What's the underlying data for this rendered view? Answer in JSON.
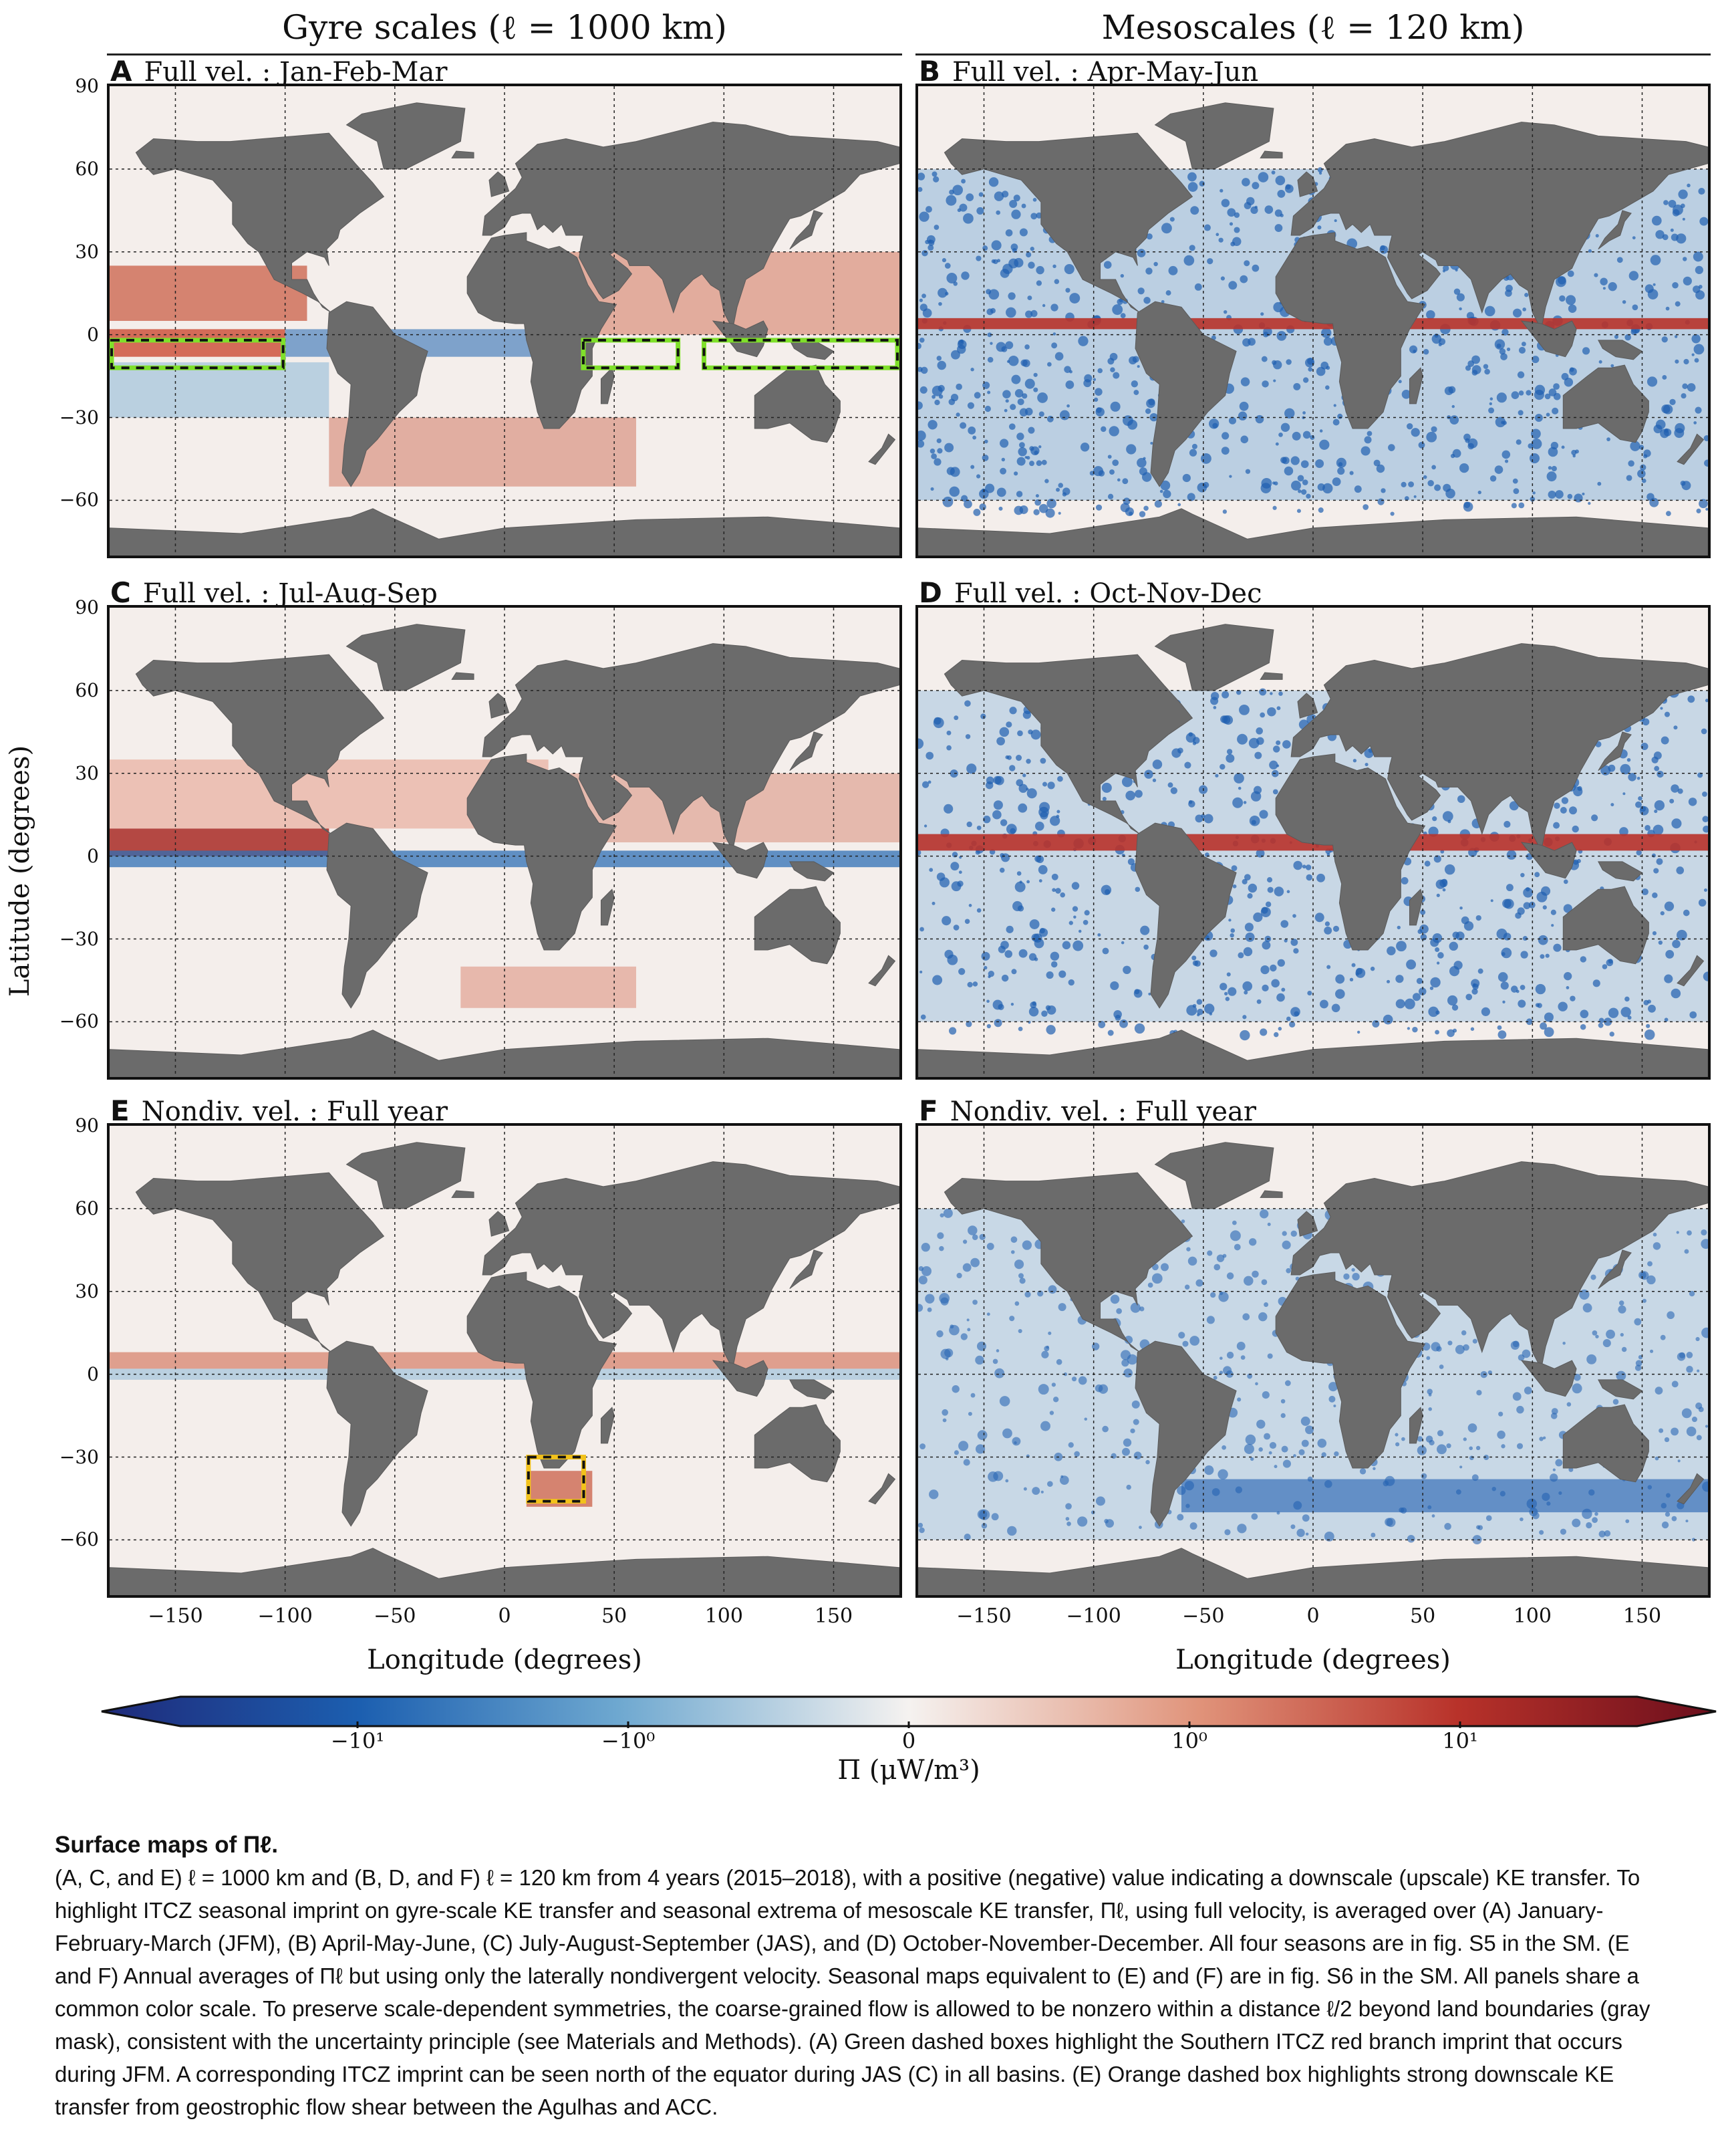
{
  "columns": {
    "left_title": "Gyre scales (ℓ = 1000 km)",
    "right_title": "Mesoscales (ℓ = 120 km)"
  },
  "panels": [
    {
      "letter": "A",
      "title": "Full vel. : Jan-Feb-Mar"
    },
    {
      "letter": "B",
      "title": "Full vel. : Apr-May-Jun"
    },
    {
      "letter": "C",
      "title": "Full vel. : Jul-Aug-Sep"
    },
    {
      "letter": "D",
      "title": "Full vel. : Oct-Nov-Dec"
    },
    {
      "letter": "E",
      "title": "Nondiv. vel. : Full year"
    },
    {
      "letter": "F",
      "title": "Nondiv. vel. : Full year"
    }
  ],
  "axes": {
    "ylabel": "Latitude (degrees)",
    "xlabel": "Longitude (degrees)",
    "yticks": [
      "90",
      "60",
      "30",
      "0",
      "−30",
      "−60"
    ],
    "xticks": [
      "−150",
      "−100",
      "−50",
      "0",
      "50",
      "100",
      "150"
    ]
  },
  "colorbar": {
    "label": "Π (μW/m³)",
    "ticks": [
      "−10¹",
      "−10⁰",
      "0",
      "10⁰",
      "10¹"
    ],
    "colors": [
      "#1f2a7a",
      "#1c5fb0",
      "#6ea8d0",
      "#f5f2f0",
      "#e0937a",
      "#b8322a",
      "#6b0e1c"
    ]
  },
  "chart_data": {
    "type": "heatmap",
    "title": "Surface maps of Πℓ",
    "panels": [
      "A",
      "B",
      "C",
      "D",
      "E",
      "F"
    ],
    "xlim": [
      -180,
      180
    ],
    "ylim": [
      -80,
      90
    ],
    "colorscale": "diverging symlog, blue negative (upscale) to red positive (downscale)",
    "highlight_boxes": [
      {
        "panel": "A",
        "color": "green",
        "lon": [
          -180,
          -100
        ],
        "lat": [
          -12,
          -2
        ]
      },
      {
        "panel": "A",
        "color": "green",
        "lon": [
          35,
          80
        ],
        "lat": [
          -12,
          -2
        ]
      },
      {
        "panel": "A",
        "color": "green",
        "lon": [
          90,
          180
        ],
        "lat": [
          -12,
          -2
        ]
      },
      {
        "panel": "E",
        "color": "orange",
        "lon": [
          10,
          37
        ],
        "lat": [
          -46,
          -30
        ]
      }
    ]
  },
  "caption": {
    "title": "Surface maps of Πℓ.",
    "body": "(A, C, and E) ℓ = 1000 km and (B, D, and F) ℓ = 120 km from 4 years (2015–2018), with a positive (negative) value indicating a downscale (upscale) KE transfer. To highlight ITCZ seasonal imprint on gyre-scale KE transfer and seasonal extrema of mesoscale KE transfer, Πℓ, using full velocity, is averaged over (A) January-February-March (JFM), (B) April-May-June, (C) July-August-September (JAS), and (D) October-November-December. All four seasons are in fig. S5 in the SM. (E and F) Annual averages of Πℓ but using only the laterally nondivergent velocity. Seasonal maps equivalent to (E) and (F) are in fig. S6 in the SM. All panels share a common color scale. To preserve scale-dependent symmetries, the coarse-grained flow is allowed to be nonzero within a distance ℓ/2 beyond land boundaries (gray mask), consistent with the uncertainty principle (see Materials and Methods). (A) Green dashed boxes highlight the Southern ITCZ red branch imprint that occurs during JFM. A corresponding ITCZ imprint can be seen north of the equator during JAS (C) in all basins. (E) Orange dashed box highlights strong downscale KE transfer from geostrophic flow shear between the Agulhas and ACC."
  }
}
